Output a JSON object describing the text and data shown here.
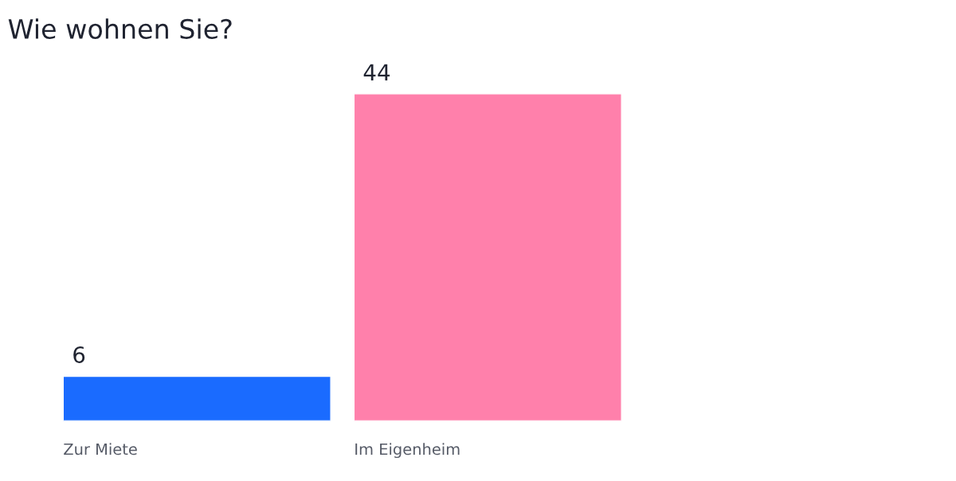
{
  "chart_data": {
    "type": "bar",
    "title": "Wie wohnen Sie?",
    "categories": [
      "Zur Miete",
      "Im Eigenheim"
    ],
    "values": [
      6,
      44
    ],
    "colors": [
      "#1a6bff",
      "#ff80ab"
    ],
    "data_labels": true
  }
}
